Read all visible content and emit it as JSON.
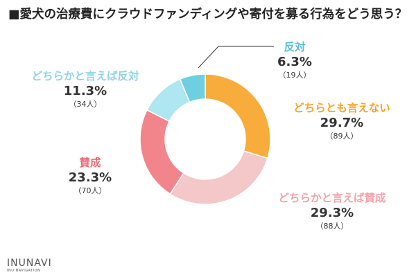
{
  "title": "■愛犬の治療費にクラウドファンディングや寄付を募る行為をどう思う？",
  "chart_data": {
    "type": "pie",
    "title": "■愛犬の治療費にクラウドファンディングや寄付を募る行為をどう思う？",
    "donut": true,
    "legend": "labels beside slices",
    "slices": [
      {
        "name": "どちらとも言えない",
        "value": 29.7,
        "value_label": "29.7%",
        "count": 89,
        "count_label": "（89人）",
        "color": "#f8ac3c"
      },
      {
        "name": "どちらかと言えば賛成",
        "value": 29.3,
        "value_label": "29.3%",
        "count": 88,
        "count_label": "（88人）",
        "color": "#f4c7c8"
      },
      {
        "name": "賛成",
        "value": 23.3,
        "value_label": "23.3%",
        "count": 70,
        "count_label": "（70人）",
        "color": "#f2858c"
      },
      {
        "name": "どちらかと言えば反対",
        "value": 11.3,
        "value_label": "11.3%",
        "count": 34,
        "count_label": "（34人）",
        "color": "#aee6f2"
      },
      {
        "name": "反対",
        "value": 6.3,
        "value_label": "6.3%",
        "count": 19,
        "count_label": "（19人）",
        "color": "#6dcfe0"
      }
    ]
  },
  "logo": {
    "main": "INUNAVI",
    "sub": "INU NAVIGATION"
  }
}
